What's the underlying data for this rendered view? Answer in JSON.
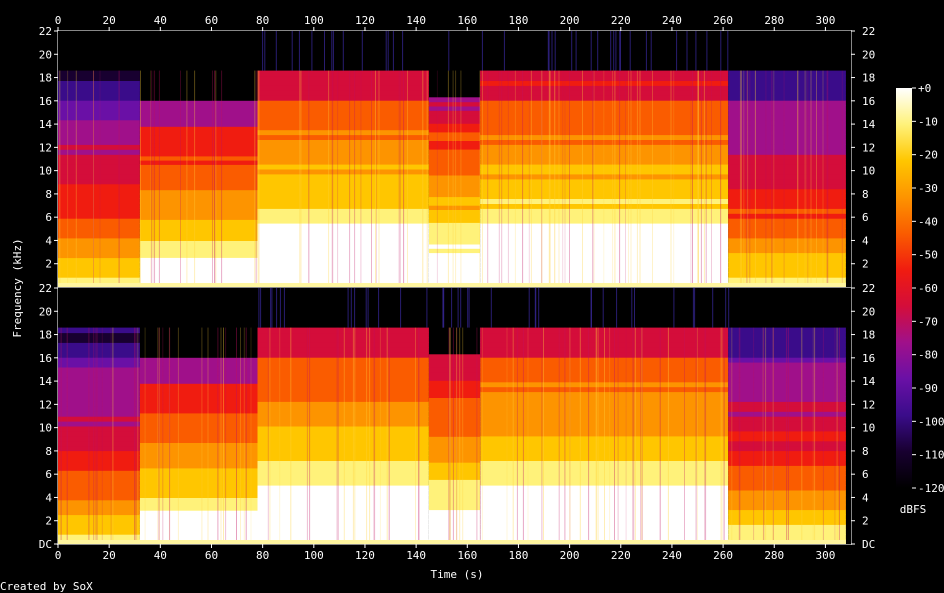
{
  "chart_data": {
    "type": "heatmap",
    "title": "",
    "xlabel": "Time (s)",
    "ylabel": "Frequency (kHz)",
    "credit": "Created by SoX",
    "x_ticks": [
      "0",
      "20",
      "40",
      "60",
      "80",
      "100",
      "120",
      "140",
      "160",
      "180",
      "200",
      "220",
      "240",
      "260",
      "280",
      "300"
    ],
    "x_range": [
      0,
      310
    ],
    "y_range_khz": [
      0,
      22
    ],
    "channels": [
      {
        "y_ticks": [
          "2",
          "4",
          "6",
          "8",
          "10",
          "12",
          "14",
          "16",
          "18",
          "20",
          "22"
        ]
      },
      {
        "y_ticks": [
          "DC",
          "2",
          "4",
          "6",
          "8",
          "10",
          "12",
          "14",
          "16",
          "18",
          "20",
          "22"
        ]
      }
    ],
    "colorbar": {
      "unit": "dBFS",
      "ticks": [
        "+0",
        "-10",
        "-20",
        "-30",
        "-40",
        "-50",
        "-60",
        "-70",
        "-80",
        "-90",
        "-100",
        "-110",
        "-120"
      ],
      "range": [
        -120,
        0
      ],
      "colors": [
        "#000000",
        "#180030",
        "#3a0c8a",
        "#6a10a6",
        "#a0108a",
        "#d40d3a",
        "#f01c10",
        "#fa5c00",
        "#fd9400",
        "#ffc600",
        "#fff27a",
        "#ffffff"
      ]
    },
    "segments": [
      {
        "start": 0,
        "end": 32,
        "cutoff_khz": 18.6,
        "level": 0.48
      },
      {
        "start": 32,
        "end": 78,
        "cutoff_khz": 16.0,
        "level": 0.7
      },
      {
        "start": 78,
        "end": 145,
        "cutoff_khz": 18.6,
        "level": 0.8
      },
      {
        "start": 145,
        "end": 165,
        "cutoff_khz": 16.3,
        "level": 0.74
      },
      {
        "start": 165,
        "end": 262,
        "cutoff_khz": 18.6,
        "level": 0.8
      },
      {
        "start": 262,
        "end": 308,
        "cutoff_khz": 18.6,
        "level": 0.5
      }
    ]
  }
}
